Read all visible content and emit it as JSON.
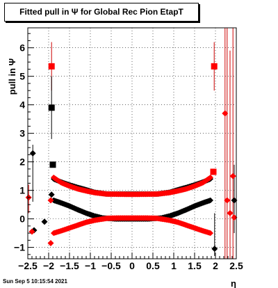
{
  "title": "Fitted pull in  Ψ  for Global Rec Pion EtapT",
  "timestamp": "Sun Sep  5 10:15:54 2021",
  "chart_data": {
    "type": "scatter",
    "xlabel": "η",
    "ylabel": "pull in  Ψ",
    "xlim": [
      -2.5,
      2.5
    ],
    "ylim": [
      -1.4,
      6.7
    ],
    "grid": true,
    "xticks": [
      "−2.5",
      "−2",
      "−1.5",
      "−1",
      "−0.5",
      "0",
      "0.5",
      "1",
      "1.5",
      "2",
      "2.5"
    ],
    "yticks": [
      "−1",
      "0",
      "1",
      "2",
      "3",
      "4",
      "5",
      "6"
    ],
    "colors": {
      "black": "#000000",
      "red": "#ff0000",
      "errorbar": "#cc0000"
    },
    "series": [
      {
        "color": "black",
        "marker": "square",
        "points": [
          [
            -1.93,
            3.9
          ],
          [
            -1.9,
            1.9
          ]
        ]
      },
      {
        "color": "red",
        "marker": "square",
        "points": [
          [
            -1.93,
            5.35
          ],
          [
            1.97,
            5.35
          ],
          [
            1.95,
            1.65
          ]
        ]
      },
      {
        "color": "black",
        "marker": "diamond",
        "points": [
          [
            -2.38,
            2.3
          ],
          [
            -2.1,
            -0.1
          ],
          [
            -2.35,
            -0.4
          ],
          [
            -1.93,
            0.85
          ],
          [
            1.98,
            -1.05
          ],
          [
            2.45,
            0.65
          ]
        ]
      },
      {
        "color": "red",
        "marker": "diamond",
        "points": [
          [
            -2.48,
            0.75
          ],
          [
            -2.4,
            -0.45
          ],
          [
            -1.95,
            -0.85
          ],
          [
            -1.95,
            0.65
          ],
          [
            2.23,
            3.7
          ],
          [
            2.28,
            0.65
          ],
          [
            2.35,
            0.2
          ],
          [
            2.42,
            1.5
          ],
          [
            2.45,
            0.05
          ]
        ]
      }
    ],
    "bands": [
      {
        "color": "black",
        "marker": "diamond",
        "shape": "u",
        "points": [
          [
            -1.88,
            1.4
          ],
          [
            -1.7,
            1.29
          ],
          [
            -1.5,
            1.19
          ],
          [
            -1.3,
            1.1
          ],
          [
            -1.1,
            1.02
          ],
          [
            -0.9,
            0.93
          ],
          [
            -0.6,
            0.87
          ],
          [
            0,
            0.87
          ],
          [
            0.6,
            0.87
          ],
          [
            0.9,
            0.93
          ],
          [
            1.1,
            1.02
          ],
          [
            1.3,
            1.1
          ],
          [
            1.5,
            1.19
          ],
          [
            1.7,
            1.29
          ],
          [
            1.88,
            1.4
          ]
        ]
      },
      {
        "color": "red",
        "marker": "diamond",
        "shape": "u",
        "points": [
          [
            -1.88,
            1.45
          ],
          [
            -1.7,
            1.27
          ],
          [
            -1.5,
            1.15
          ],
          [
            -1.3,
            1.05
          ],
          [
            -1.1,
            0.98
          ],
          [
            -0.9,
            0.92
          ],
          [
            -0.6,
            0.87
          ],
          [
            0,
            0.86
          ],
          [
            0.6,
            0.87
          ],
          [
            0.9,
            0.92
          ],
          [
            1.1,
            0.98
          ],
          [
            1.3,
            1.05
          ],
          [
            1.5,
            1.15
          ],
          [
            1.7,
            1.27
          ],
          [
            1.88,
            1.45
          ]
        ]
      },
      {
        "color": "black",
        "marker": "diamond",
        "shape": "v",
        "points": [
          [
            -1.88,
            0.65
          ],
          [
            -1.7,
            0.56
          ],
          [
            -1.5,
            0.45
          ],
          [
            -1.3,
            0.32
          ],
          [
            -1.1,
            0.2
          ],
          [
            -0.9,
            0.1
          ],
          [
            -0.7,
            0.03
          ],
          [
            -0.4,
            0.0
          ],
          [
            0,
            0.0
          ],
          [
            0.4,
            0.0
          ],
          [
            0.7,
            0.03
          ],
          [
            0.9,
            0.1
          ],
          [
            1.1,
            0.2
          ],
          [
            1.3,
            0.32
          ],
          [
            1.5,
            0.45
          ],
          [
            1.7,
            0.56
          ],
          [
            1.88,
            0.65
          ]
        ]
      },
      {
        "color": "red",
        "marker": "diamond",
        "shape": "n",
        "points": [
          [
            -1.88,
            -0.5
          ],
          [
            -1.7,
            -0.42
          ],
          [
            -1.5,
            -0.32
          ],
          [
            -1.3,
            -0.22
          ],
          [
            -1.1,
            -0.12
          ],
          [
            -0.9,
            -0.05
          ],
          [
            -0.6,
            0.02
          ],
          [
            -0.3,
            0.03
          ],
          [
            0,
            0.03
          ],
          [
            0.3,
            0.03
          ],
          [
            0.6,
            0.02
          ],
          [
            0.9,
            -0.05
          ],
          [
            1.1,
            -0.12
          ],
          [
            1.3,
            -0.22
          ],
          [
            1.5,
            -0.32
          ],
          [
            1.7,
            -0.42
          ],
          [
            1.88,
            -0.5
          ]
        ]
      }
    ]
  }
}
